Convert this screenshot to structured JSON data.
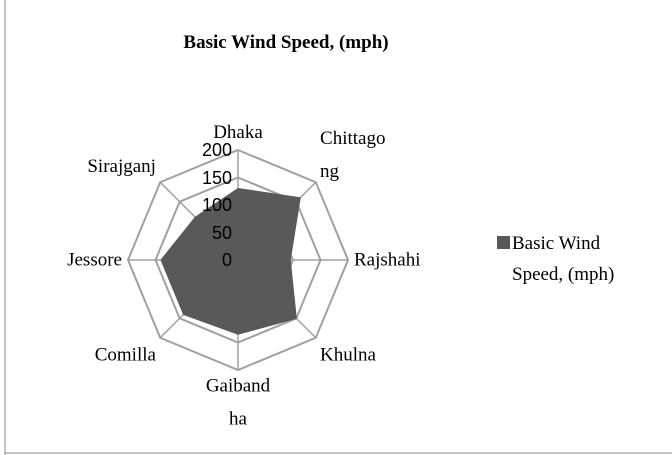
{
  "chart_data": {
    "type": "radar",
    "title": "Basic Wind Speed, (mph)",
    "categories": [
      "Dhaka",
      "Chittagong",
      "Rajshahi",
      "Khulna",
      "Gaibandha",
      "Comilla",
      "Jessore",
      "Sirajganj"
    ],
    "series": [
      {
        "name": "Basic Wind Speed, (mph)",
        "color": "#595959",
        "values": [
          130,
          160,
          95,
          150,
          135,
          140,
          140,
          110
        ]
      }
    ],
    "ylim": [
      0,
      200
    ],
    "yticks": [
      0,
      50,
      100,
      150,
      200
    ],
    "legend": "right"
  }
}
